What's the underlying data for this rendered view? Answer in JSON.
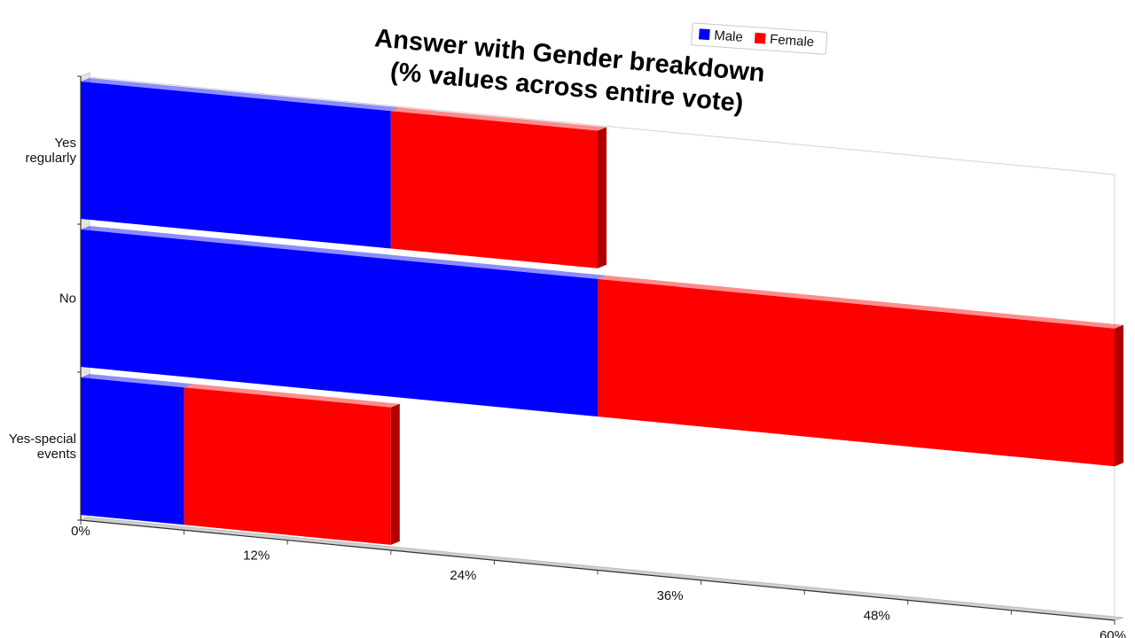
{
  "chart_data": {
    "type": "bar",
    "orientation": "horizontal",
    "stacked": true,
    "style": "3d-perspective",
    "title_lines": [
      "Answer with Gender breakdown",
      "(% values across entire vote)"
    ],
    "categories": [
      "Yes regularly",
      "No",
      "Yes-special events"
    ],
    "category_label_lines": [
      [
        "Yes",
        "regularly"
      ],
      [
        "No"
      ],
      [
        "Yes-special",
        "events"
      ]
    ],
    "series": [
      {
        "name": "Male",
        "color": "#0000ff",
        "side_color": "#0000b0",
        "values": [
          18,
          30,
          6
        ]
      },
      {
        "name": "Female",
        "color": "#ff0000",
        "side_color": "#b00000",
        "values": [
          12,
          30,
          12
        ]
      }
    ],
    "xlim": [
      0,
      60
    ],
    "x_ticks": [
      0,
      12,
      24,
      36,
      48,
      60
    ],
    "x_tick_labels": [
      "0%",
      "12%",
      "24%",
      "36%",
      "48%",
      "60%"
    ],
    "legend_position": "top-right",
    "grid": false
  }
}
